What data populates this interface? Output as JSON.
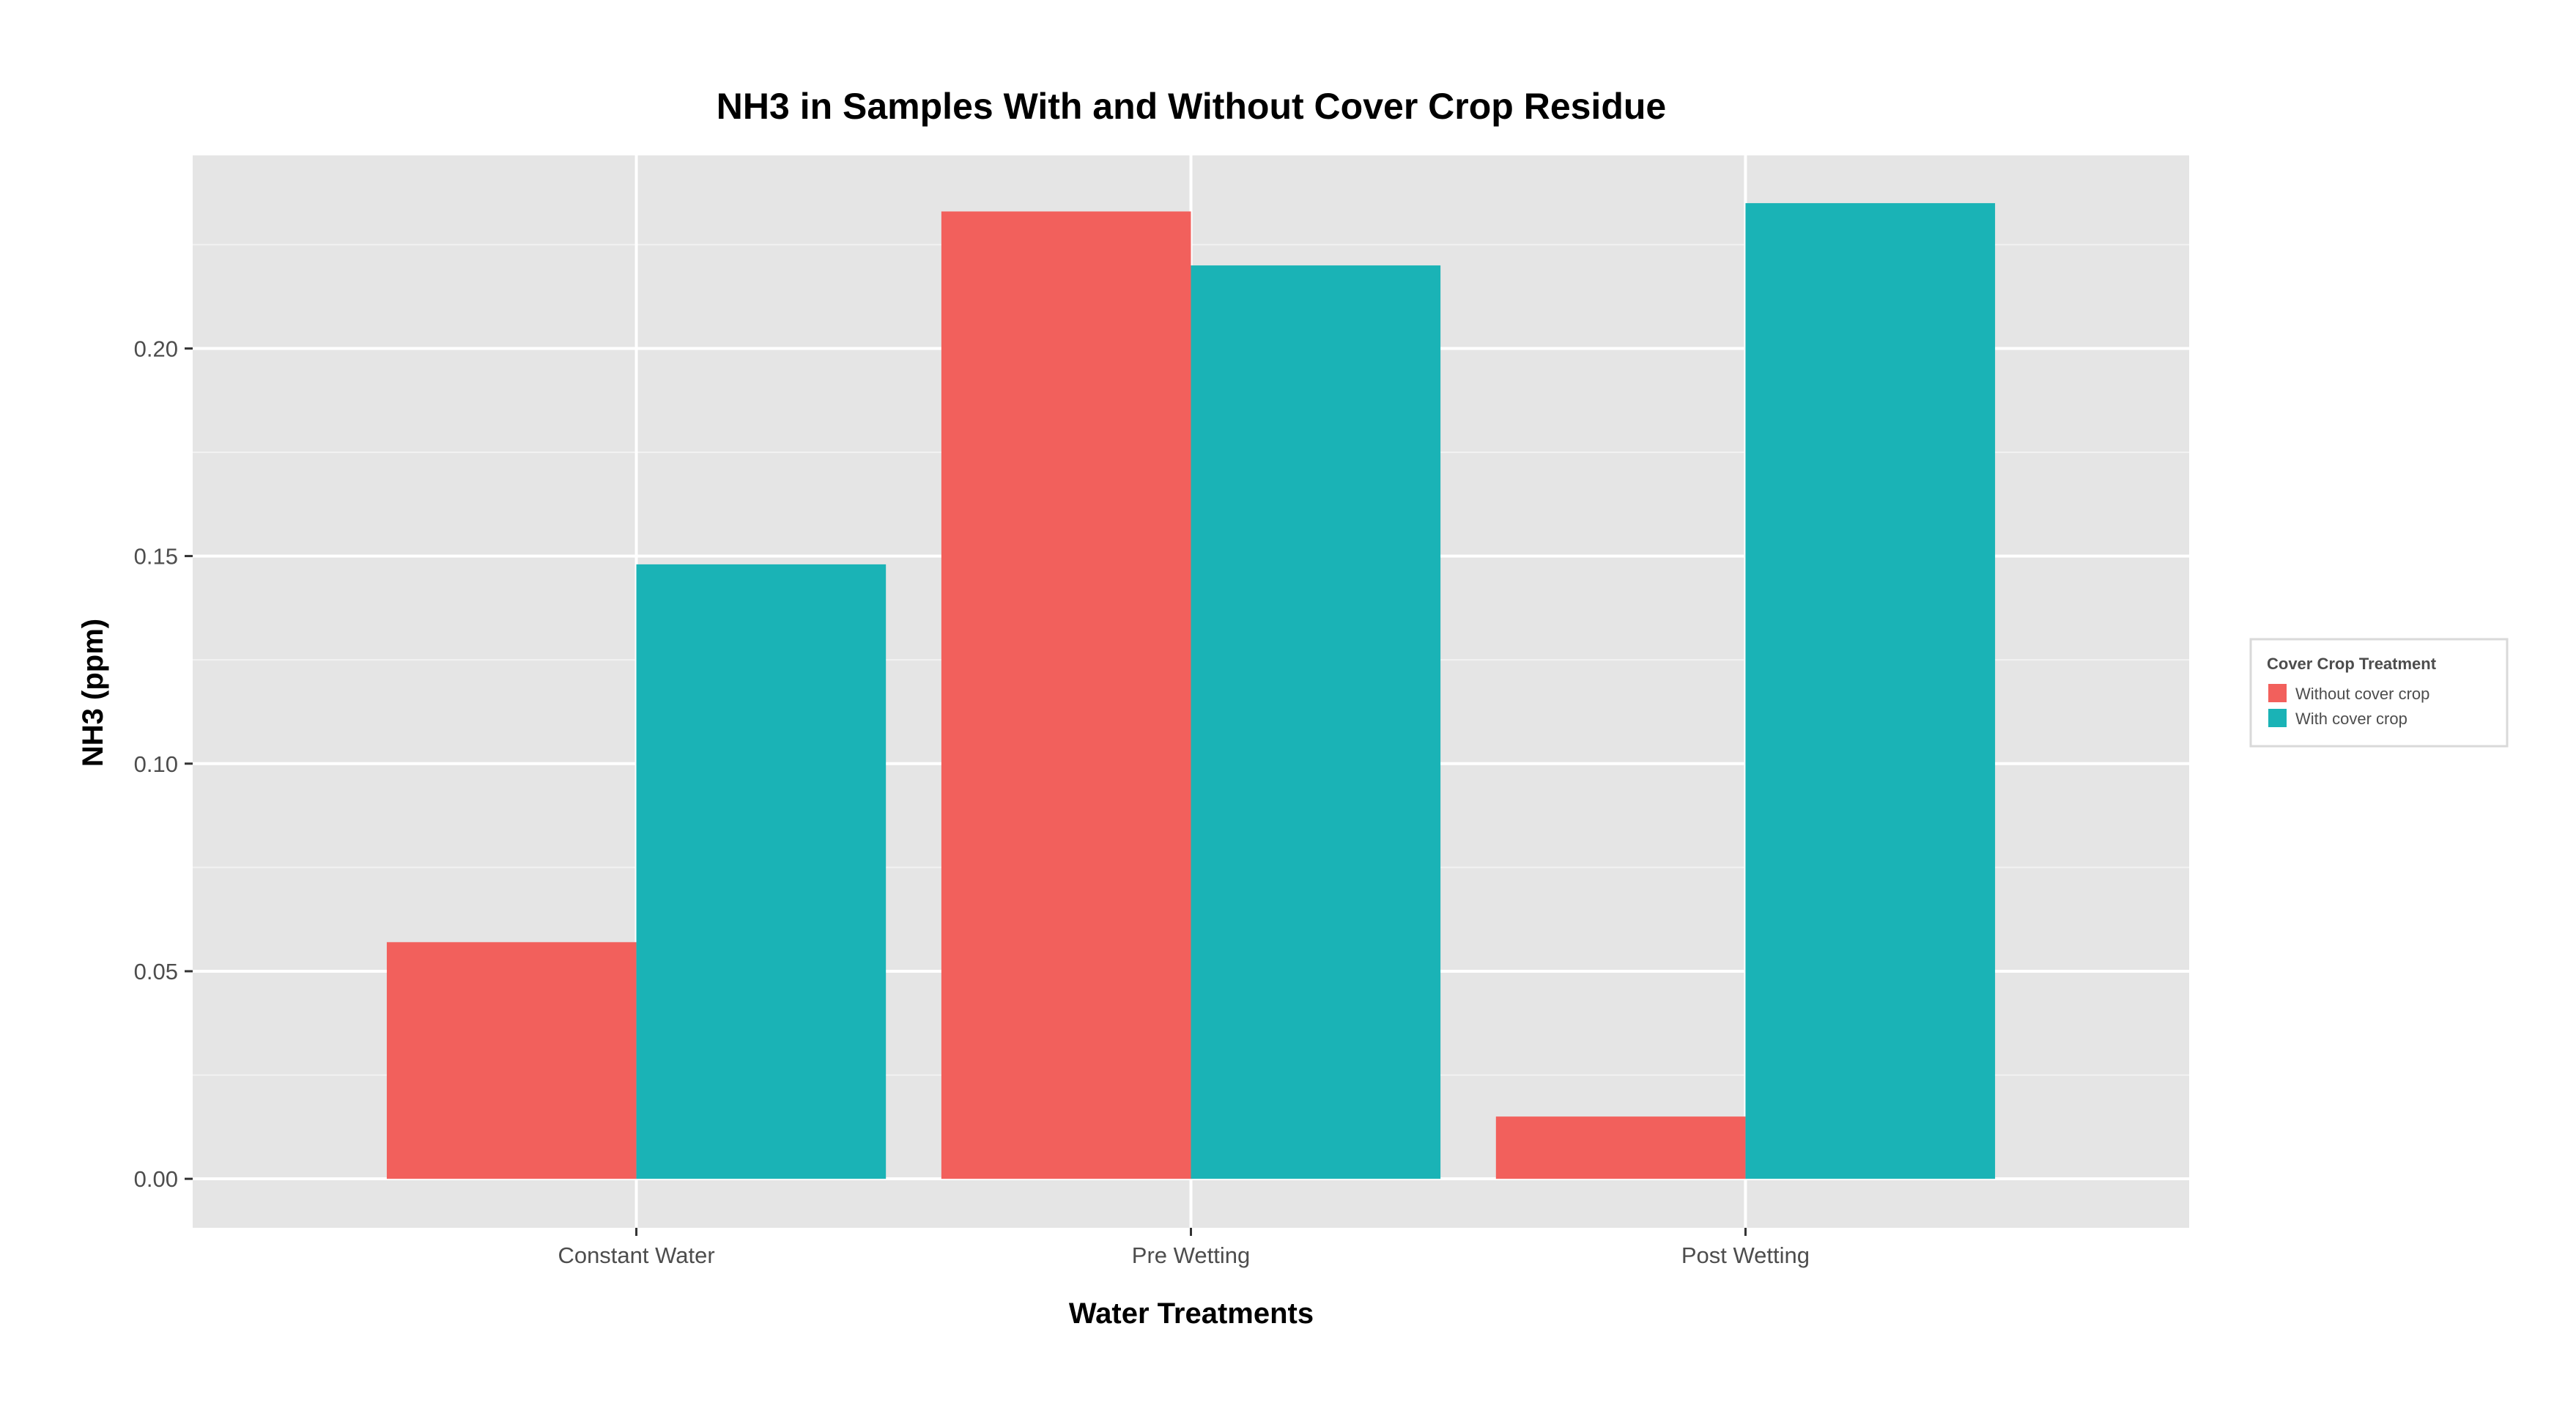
{
  "chart_data": {
    "type": "bar",
    "title": "NH3 in Samples With and Without Cover Crop Residue",
    "xlabel": "Water Treatments",
    "ylabel": "NH3 (ppm)",
    "categories": [
      "Constant Water",
      "Pre Wetting",
      "Post Wetting"
    ],
    "series": [
      {
        "name": "Without cover crop",
        "color": "#F2605C",
        "values": [
          0.057,
          0.233,
          0.015
        ]
      },
      {
        "name": "With cover crop",
        "color": "#1AB3B6",
        "values": [
          0.148,
          0.22,
          0.235
        ]
      }
    ],
    "ylim": [
      -0.0118,
      0.2465
    ],
    "yticks": [
      0.0,
      0.05,
      0.1,
      0.15,
      0.2
    ],
    "ytick_labels": [
      "0.00",
      "0.05",
      "0.10",
      "0.15",
      "0.20"
    ],
    "grid": true,
    "panel_background": "#E5E5E5",
    "grid_color": "#FFFFFF",
    "legend": {
      "title": "Cover Crop Treatment",
      "position": "right"
    }
  }
}
